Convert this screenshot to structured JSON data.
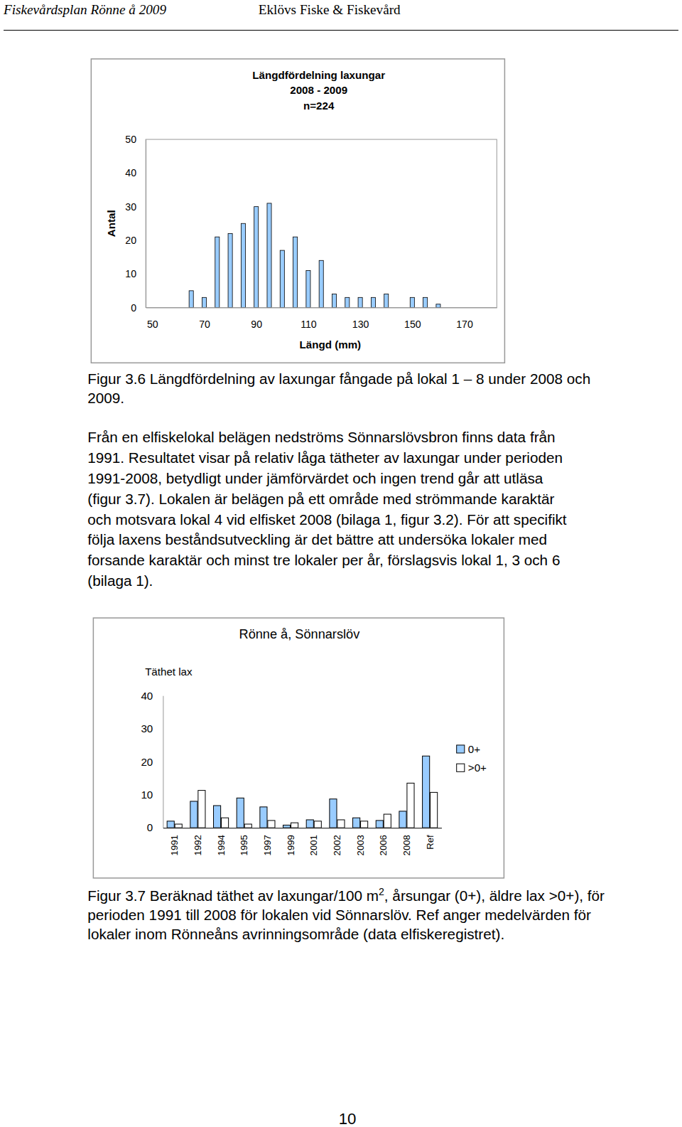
{
  "header": {
    "left": "Fiskevårdsplan Rönne å 2009",
    "right": "Eklövs Fiske & Fiskevård"
  },
  "chart_data": [
    {
      "type": "bar",
      "title": [
        "Längdfördelning laxungar",
        "2008 - 2009",
        "n=224"
      ],
      "x_label": "Längd (mm)",
      "y_label": "Antal",
      "x": [
        65,
        70,
        75,
        80,
        85,
        90,
        95,
        100,
        105,
        110,
        115,
        120,
        125,
        130,
        135,
        140,
        145,
        150,
        155,
        160
      ],
      "values": [
        5,
        3,
        21,
        22,
        25,
        30,
        31,
        17,
        21,
        11,
        14,
        4,
        3,
        3,
        3,
        4,
        0,
        3,
        3,
        1
      ],
      "color": "#99ccff",
      "xlim": [
        47.5,
        182.5
      ],
      "xticks": [
        50,
        70,
        90,
        110,
        130,
        150,
        170
      ],
      "ylim": [
        0,
        50
      ],
      "yticks": [
        0,
        10,
        20,
        30,
        40,
        50
      ],
      "grid": false
    },
    {
      "type": "bar",
      "title": "Rönne å, Sönnarslöv",
      "y_label": "Täthet lax",
      "categories": [
        "1991",
        "1992",
        "1994",
        "1995",
        "1997",
        "1999",
        "2001",
        "2002",
        "2003",
        "2006",
        "2008",
        "Ref"
      ],
      "series": [
        {
          "name": "0+",
          "color": "#99ccff",
          "values": [
            2,
            8,
            6.7,
            9,
            6.3,
            0.8,
            2.4,
            8.7,
            3,
            2.2,
            5,
            21.7
          ]
        },
        {
          "name": ">0+",
          "color": "#ffffff",
          "values": [
            1.1,
            11.3,
            3,
            1.1,
            2.2,
            1.5,
            2,
            2.4,
            2,
            4.1,
            13.5,
            10.7
          ]
        }
      ],
      "ylim": [
        0,
        40
      ],
      "yticks": [
        0,
        10,
        20,
        30,
        40
      ],
      "legend": "right",
      "grid": false
    }
  ],
  "caption_1": [
    "Figur 3.6 Längdfördelning av laxungar fångade på lokal 1 – 8 under 2008 och",
    "2009."
  ],
  "paragraph": [
    "Från en elfiskelokal belägen nedströms Sönnarslövsbron finns data från",
    "1991. Resultatet visar på relativ låga tätheter av laxungar under perioden",
    "1991-2008, betydligt under jämförvärdet och ingen trend går att utläsa",
    "(figur 3.7). Lokalen är belägen på ett område med strömmande karaktär",
    "och motsvara lokal 4 vid elfisket 2008 (bilaga 1, figur 3.2). För att specifikt",
    "följa laxens beståndsutveckling är det bättre att undersöka lokaler med",
    "forsande karaktär och minst tre lokaler per år, förslagsvis lokal 1, 3 och 6",
    "(bilaga 1)."
  ],
  "caption_2": {
    "first_line": [
      "Figur 3.7 Beräknad täthet av laxungar/100 m",
      "2",
      ", årsungar (0+), äldre lax >0+), för"
    ],
    "more_lines": [
      "perioden 1991 till 2008 för lokalen vid Sönnarslöv. Ref anger medelvärden för",
      "lokaler inom Rönneåns avrinningsområde (data elfiskeregistret)."
    ]
  },
  "page_number": "10"
}
